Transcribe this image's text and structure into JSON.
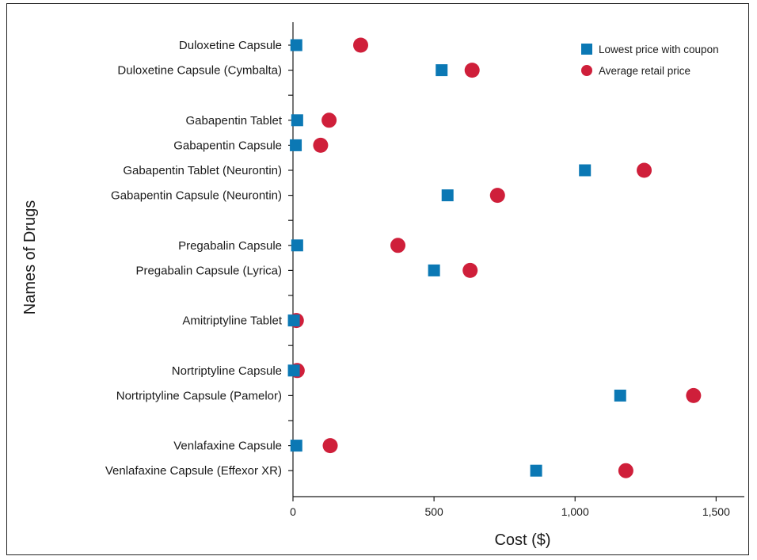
{
  "chart_data": {
    "type": "scatter",
    "xlabel": "Cost ($)",
    "ylabel": "Names of Drugs",
    "xlim": [
      0,
      1600
    ],
    "xticks": [
      0,
      500,
      1000,
      1500
    ],
    "xtick_labels": [
      "0",
      "500",
      "1,000",
      "1,500"
    ],
    "grid": false,
    "legend_position": "top-right",
    "rows": [
      {
        "label": "Duloxetine Capsule",
        "coupon": 12,
        "retail": 240
      },
      {
        "label": "Duloxetine Capsule (Cymbalta)",
        "coupon": 527,
        "retail": 635
      },
      {
        "label": "",
        "coupon": null,
        "retail": null
      },
      {
        "label": "Gabapentin Tablet",
        "coupon": 15,
        "retail": 128
      },
      {
        "label": "Gabapentin Capsule",
        "coupon": 10,
        "retail": 98
      },
      {
        "label": "Gabapentin Tablet (Neurontin)",
        "coupon": 1035,
        "retail": 1245
      },
      {
        "label": "Gabapentin Capsule (Neurontin)",
        "coupon": 548,
        "retail": 725
      },
      {
        "label": "",
        "coupon": null,
        "retail": null
      },
      {
        "label": "Pregabalin Capsule",
        "coupon": 15,
        "retail": 372
      },
      {
        "label": "Pregabalin Capsule (Lyrica)",
        "coupon": 500,
        "retail": 628
      },
      {
        "label": "",
        "coupon": null,
        "retail": null
      },
      {
        "label": "Amitriptyline Tablet",
        "coupon": 3,
        "retail": 12
      },
      {
        "label": "",
        "coupon": null,
        "retail": null
      },
      {
        "label": "Nortriptyline Capsule",
        "coupon": 3,
        "retail": 15
      },
      {
        "label": "Nortriptyline Capsule (Pamelor)",
        "coupon": 1160,
        "retail": 1420
      },
      {
        "label": "",
        "coupon": null,
        "retail": null
      },
      {
        "label": "Venlafaxine Capsule",
        "coupon": 12,
        "retail": 132
      },
      {
        "label": "Venlafaxine Capsule (Effexor XR)",
        "coupon": 862,
        "retail": 1180
      }
    ],
    "series": [
      {
        "name": "Lowest price with coupon",
        "key": "coupon",
        "marker": "square",
        "color": "#0b78b4"
      },
      {
        "name": "Average retail price",
        "key": "retail",
        "marker": "circle",
        "color": "#cf1f3a"
      }
    ]
  }
}
